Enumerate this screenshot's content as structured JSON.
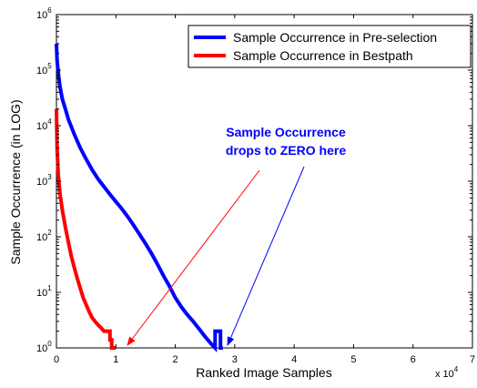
{
  "chart_data": {
    "type": "line",
    "xlabel": "Ranked Image Samples",
    "ylabel": "Sample Occurrence (in LOG)",
    "x_multiplier_label": "x 10",
    "x_multiplier_exp": "4",
    "xlim": [
      0,
      70000
    ],
    "ylim": [
      1,
      1000000
    ],
    "yscale": "log",
    "grid": false,
    "legend_position": "top-right",
    "x_ticks": [
      {
        "value": 0,
        "label": "0"
      },
      {
        "value": 10000,
        "label": "1"
      },
      {
        "value": 20000,
        "label": "2"
      },
      {
        "value": 30000,
        "label": "3"
      },
      {
        "value": 40000,
        "label": "4"
      },
      {
        "value": 50000,
        "label": "5"
      },
      {
        "value": 60000,
        "label": "6"
      },
      {
        "value": 70000,
        "label": "7"
      }
    ],
    "y_ticks": [
      {
        "value": 1,
        "base": "10",
        "exp": "0"
      },
      {
        "value": 10,
        "base": "10",
        "exp": "1"
      },
      {
        "value": 100,
        "base": "10",
        "exp": "2"
      },
      {
        "value": 1000,
        "base": "10",
        "exp": "3"
      },
      {
        "value": 10000,
        "base": "10",
        "exp": "4"
      },
      {
        "value": 100000,
        "base": "10",
        "exp": "5"
      },
      {
        "value": 1000000,
        "base": "10",
        "exp": "6"
      }
    ],
    "series": [
      {
        "name": "Sample Occurrence in Pre-selection",
        "color": "#0000ff",
        "x": [
          0,
          100,
          300,
          600,
          1000,
          1500,
          2000,
          3000,
          4000,
          5000,
          6000,
          7000,
          8000,
          9000,
          10000,
          11000,
          12000,
          13000,
          14000,
          15000,
          16000,
          17000,
          18000,
          19000,
          20000,
          21000,
          22000,
          23000,
          24000,
          25000,
          26000,
          26700,
          26700,
          27600,
          27600,
          28000
        ],
        "y": [
          300000,
          150000,
          90000,
          50000,
          30000,
          20000,
          13000,
          7000,
          4000,
          2500,
          1600,
          1100,
          800,
          580,
          430,
          320,
          230,
          160,
          110,
          75,
          50,
          32,
          20,
          13,
          8,
          5.5,
          4,
          3,
          2.2,
          1.6,
          1.2,
          1,
          2,
          2,
          1,
          1
        ]
      },
      {
        "name": "Sample Occurrence in Bestpath",
        "color": "#ff0000",
        "x": [
          0,
          100,
          300,
          600,
          1000,
          1500,
          2000,
          2500,
          3000,
          3500,
          4000,
          4500,
          5000,
          5500,
          6000,
          6500,
          7000,
          7500,
          8000,
          8500,
          8500,
          9000,
          9000,
          9300,
          9300,
          10000
        ],
        "y": [
          20000,
          4000,
          1300,
          600,
          300,
          150,
          80,
          45,
          28,
          18,
          12,
          8,
          6,
          4.5,
          3.5,
          3,
          2.6,
          2.3,
          2,
          2,
          2,
          2,
          1.4,
          1.4,
          1,
          1
        ]
      }
    ],
    "annotations": [
      {
        "text_lines": [
          "Sample Occurrence",
          "drops to ZERO here"
        ],
        "color": "#0000ff"
      }
    ]
  }
}
